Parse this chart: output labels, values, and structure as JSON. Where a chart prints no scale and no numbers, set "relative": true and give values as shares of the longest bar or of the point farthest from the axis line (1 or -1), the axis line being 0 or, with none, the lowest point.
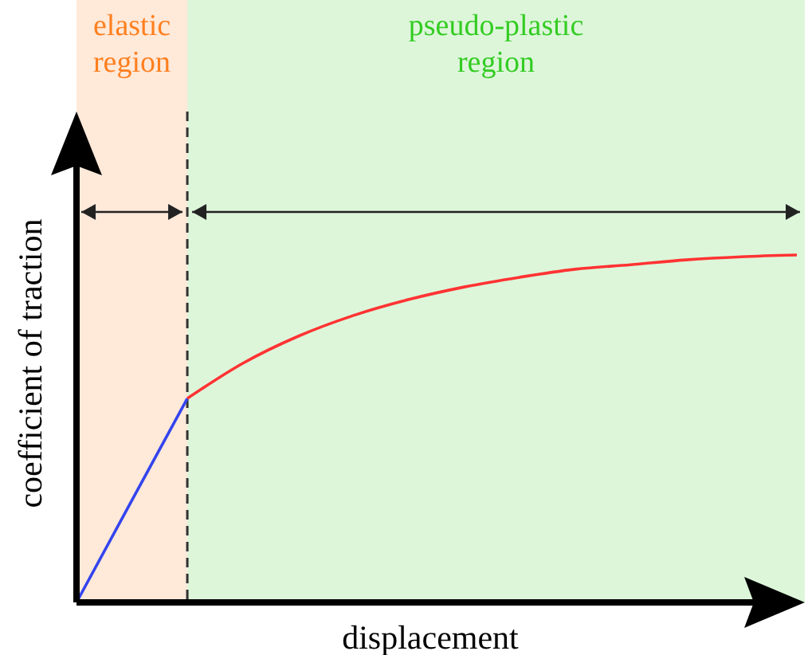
{
  "chart_data": {
    "type": "line",
    "relative": true,
    "xlabel": "displacement",
    "ylabel": "coefficient of traction",
    "categories": [
      null,
      null,
      null,
      null,
      null,
      null,
      null,
      null,
      null,
      null,
      null,
      null,
      null,
      null
    ],
    "series": [
      {
        "color": "#3344ee",
        "values": [
          0,
          0.294,
          0.587,
          null,
          null,
          null,
          null,
          null,
          null,
          null,
          null,
          null,
          null,
          null
        ]
      },
      {
        "color": "#ff3333",
        "values": [
          null,
          null,
          0.587,
          0.688,
          0.766,
          0.826,
          0.872,
          0.908,
          0.936,
          0.959,
          0.972,
          0.986,
          0.995,
          1
        ]
      }
    ],
    "annotations": [
      "elastic region",
      "pseudo-plastic region"
    ],
    "marker": "none",
    "line_style": "solid"
  }
}
